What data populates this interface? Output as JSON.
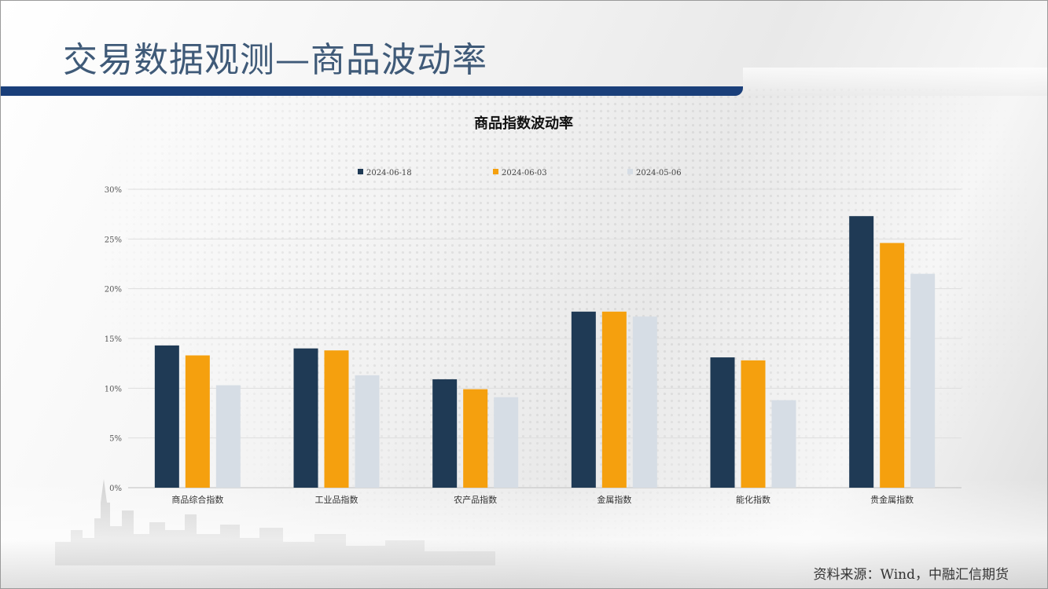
{
  "slide": {
    "title": "交易数据观测—商品波动率",
    "source": "资料来源：Wind，中融汇信期货"
  },
  "colors": {
    "title_text": "#3f5a78",
    "header_bar": "#1a3f7a",
    "series": [
      "#1f3a55",
      "#f5a00e",
      "#d6dde5"
    ]
  },
  "chart_data": {
    "type": "bar",
    "title": "商品指数波动率",
    "categories": [
      "商品综合指数",
      "工业品指数",
      "农产品指数",
      "金属指数",
      "能化指数",
      "贵金属指数"
    ],
    "series": [
      {
        "name": "2024-06-18",
        "values": [
          14.3,
          14.0,
          10.9,
          17.7,
          13.1,
          27.3
        ]
      },
      {
        "name": "2024-06-03",
        "values": [
          13.3,
          13.8,
          9.9,
          17.7,
          12.8,
          24.6
        ]
      },
      {
        "name": "2024-05-06",
        "values": [
          10.3,
          11.3,
          9.1,
          17.2,
          8.8,
          21.5
        ]
      }
    ],
    "ylim": [
      0,
      30
    ],
    "yticks": [
      "0%",
      "5%",
      "10%",
      "15%",
      "20%",
      "25%",
      "30%"
    ],
    "grid": true,
    "legend": "top"
  }
}
